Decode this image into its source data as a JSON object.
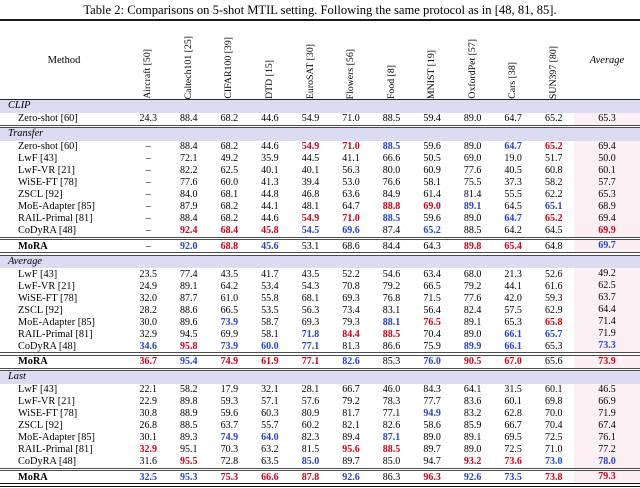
{
  "title": "Table 2: Comparisons on 5-shot MTIL setting. Following the same protocol as in [48, 81, 85].",
  "colors": {
    "best": "#d0021b",
    "second": "#2643cc",
    "section_band": "#dbdcf2",
    "average_column": "#fcf0f5"
  },
  "columns": [
    "Method",
    "Aircraft [50]",
    "Caltech101 [25]",
    "CIFAR100 [39]",
    "DTD [15]",
    "EuroSAT [30]",
    "Flowers [56]",
    "Food [8]",
    "MNIST [19]",
    "OxfordPet [57]",
    "Cars [38]",
    "SUN397 [80]",
    "Average"
  ],
  "legend_note": {
    "best_mark": "r = best (red bold)",
    "second_mark": "b = second best (blue bold)"
  },
  "chart_data": {
    "type": "table"
  },
  "sections": [
    {
      "label": "CLIP",
      "rows": [
        {
          "method": "Zero-shot [60]",
          "values": [
            "24.3",
            "88.4",
            "68.2",
            "44.6",
            "54.9",
            "71.0",
            "88.5",
            "59.4",
            "89.0",
            "64.7",
            "65.2",
            "65.3"
          ],
          "marks": [
            "",
            "",
            "",
            "",
            "",
            "",
            "",
            "",
            "",
            "",
            "",
            ""
          ]
        }
      ]
    },
    {
      "label": "Transfer",
      "rows": [
        {
          "method": "Zero-shot [60]",
          "values": [
            "–",
            "88.4",
            "68.2",
            "44.6",
            "54.9",
            "71.0",
            "88.5",
            "59.6",
            "89.0",
            "64.7",
            "65.2",
            "69.4"
          ],
          "marks": [
            "",
            "",
            "",
            "",
            "r",
            "r",
            "b",
            "",
            "",
            "b",
            "r",
            ""
          ]
        },
        {
          "method": "LwF [43]",
          "values": [
            "–",
            "72.1",
            "49.2",
            "35.9",
            "44.5",
            "41.1",
            "66.6",
            "50.5",
            "69.0",
            "19.0",
            "51.7",
            "50.0"
          ],
          "marks": [
            "",
            "",
            "",
            "",
            "",
            "",
            "",
            "",
            "",
            "",
            "",
            ""
          ]
        },
        {
          "method": "LwF-VR [21]",
          "values": [
            "–",
            "82.2",
            "62.5",
            "40.1",
            "40.1",
            "56.3",
            "80.0",
            "60.9",
            "77.6",
            "40.5",
            "60.8",
            "60.1"
          ],
          "marks": [
            "",
            "",
            "",
            "",
            "",
            "",
            "",
            "",
            "",
            "",
            "",
            ""
          ]
        },
        {
          "method": "WiSE-FT [78]",
          "values": [
            "–",
            "77.6",
            "60.0",
            "41.3",
            "39.4",
            "53.0",
            "76.6",
            "58.1",
            "75.5",
            "37.3",
            "58.2",
            "57.7"
          ],
          "marks": [
            "",
            "",
            "",
            "",
            "",
            "",
            "",
            "",
            "",
            "",
            "",
            ""
          ]
        },
        {
          "method": "ZSCL [92]",
          "values": [
            "–",
            "84.0",
            "68.1",
            "44.8",
            "46.8",
            "63.6",
            "84.9",
            "61.4",
            "81.4",
            "55.5",
            "62.2",
            "65.3"
          ],
          "marks": [
            "",
            "",
            "",
            "",
            "",
            "",
            "",
            "",
            "",
            "",
            "",
            ""
          ]
        },
        {
          "method": "MoE-Adapter [85]",
          "values": [
            "–",
            "87.9",
            "68.2",
            "44.1",
            "48.1",
            "64.7",
            "88.8",
            "69.0",
            "89.1",
            "64.5",
            "65.1",
            "68.9"
          ],
          "marks": [
            "",
            "",
            "",
            "",
            "",
            "",
            "r",
            "r",
            "b",
            "",
            "b",
            ""
          ]
        },
        {
          "method": "RAIL-Primal [81]",
          "values": [
            "–",
            "88.4",
            "68.2",
            "44.6",
            "54.9",
            "71.0",
            "88.5",
            "59.6",
            "89.0",
            "64.7",
            "65.2",
            "69.4"
          ],
          "marks": [
            "",
            "",
            "",
            "",
            "r",
            "r",
            "b",
            "",
            "",
            "b",
            "r",
            ""
          ]
        },
        {
          "method": "CoDyRA [48]",
          "values": [
            "–",
            "92.4",
            "68.4",
            "45.8",
            "54.5",
            "69.6",
            "87.4",
            "65.2",
            "88.5",
            "64.2",
            "64.5",
            "69.9"
          ],
          "marks": [
            "",
            "r",
            "r",
            "r",
            "b",
            "b",
            "",
            "b",
            "",
            "",
            "",
            "r"
          ]
        },
        {
          "method": "MoRA",
          "bold": true,
          "separated": true,
          "values": [
            "–",
            "92.0",
            "68.8",
            "45.6",
            "53.1",
            "68.6",
            "84.4",
            "64.3",
            "89.8",
            "65.4",
            "64.8",
            "69.7"
          ],
          "marks": [
            "",
            "b",
            "r",
            "b",
            "",
            "",
            "",
            "",
            "r",
            "r",
            "",
            "b"
          ]
        }
      ]
    },
    {
      "label": "Average",
      "rows": [
        {
          "method": "LwF [43]",
          "values": [
            "23.5",
            "77.4",
            "43.5",
            "41.7",
            "43.5",
            "52.2",
            "54.6",
            "63.4",
            "68.0",
            "21.3",
            "52.6",
            "49.2"
          ],
          "marks": [
            "",
            "",
            "",
            "",
            "",
            "",
            "",
            "",
            "",
            "",
            "",
            ""
          ]
        },
        {
          "method": "LwF-VR [21]",
          "values": [
            "24.9",
            "89.1",
            "64.2",
            "53.4",
            "54.3",
            "70.8",
            "79.2",
            "66.5",
            "79.2",
            "44.1",
            "61.6",
            "62.5"
          ],
          "marks": [
            "",
            "",
            "",
            "",
            "",
            "",
            "",
            "",
            "",
            "",
            "",
            ""
          ]
        },
        {
          "method": "WiSE-FT [78]",
          "values": [
            "32.0",
            "87.7",
            "61.0",
            "55.8",
            "68.1",
            "69.3",
            "76.8",
            "71.5",
            "77.6",
            "42.0",
            "59.3",
            "63.7"
          ],
          "marks": [
            "",
            "",
            "",
            "",
            "",
            "",
            "",
            "",
            "",
            "",
            "",
            ""
          ]
        },
        {
          "method": "ZSCL [92]",
          "values": [
            "28.2",
            "88.6",
            "66.5",
            "53.5",
            "56.3",
            "73.4",
            "83.1",
            "56.4",
            "82.4",
            "57.5",
            "62.9",
            "64.4"
          ],
          "marks": [
            "",
            "",
            "",
            "",
            "",
            "",
            "",
            "",
            "",
            "",
            "",
            ""
          ]
        },
        {
          "method": "MoE-Adapter [85]",
          "values": [
            "30.0",
            "89.6",
            "73.9",
            "58.7",
            "69.3",
            "79.3",
            "88.1",
            "76.5",
            "89.1",
            "65.3",
            "65.8",
            "71.4"
          ],
          "marks": [
            "",
            "",
            "b",
            "",
            "",
            "",
            "b",
            "r",
            "",
            "",
            "r",
            ""
          ]
        },
        {
          "method": "RAIL-Primal [81]",
          "values": [
            "32.9",
            "94.5",
            "69.9",
            "58.1",
            "71.8",
            "84.4",
            "88.5",
            "70.4",
            "89.0",
            "66.1",
            "65.7",
            "71.9"
          ],
          "marks": [
            "",
            "",
            "",
            "",
            "b",
            "r",
            "r",
            "",
            "",
            "b",
            "b",
            ""
          ]
        },
        {
          "method": "CoDyRA [48]",
          "values": [
            "34.6",
            "95.8",
            "73.9",
            "60.0",
            "77.1",
            "81.3",
            "86.6",
            "75.9",
            "89.9",
            "66.1",
            "65.3",
            "73.3"
          ],
          "marks": [
            "b",
            "r",
            "b",
            "b",
            "b",
            "",
            "",
            "",
            "b",
            "b",
            "",
            "b"
          ]
        },
        {
          "method": "MoRA",
          "bold": true,
          "separated": true,
          "values": [
            "36.7",
            "95.4",
            "74.9",
            "61.9",
            "77.1",
            "82.6",
            "85.3",
            "76.0",
            "90.5",
            "67.0",
            "65.6",
            "73.9"
          ],
          "marks": [
            "r",
            "b",
            "r",
            "r",
            "r",
            "b",
            "",
            "b",
            "r",
            "r",
            "",
            "r"
          ]
        }
      ]
    },
    {
      "label": "Last",
      "rows": [
        {
          "method": "LwF [43]",
          "values": [
            "22.1",
            "58.2",
            "17.9",
            "32.1",
            "28.1",
            "66.7",
            "46.0",
            "84.3",
            "64.1",
            "31.5",
            "60.1",
            "46.5"
          ],
          "marks": [
            "",
            "",
            "",
            "",
            "",
            "",
            "",
            "",
            "",
            "",
            "",
            ""
          ]
        },
        {
          "method": "LwF-VR [21]",
          "values": [
            "22.9",
            "89.8",
            "59.3",
            "57.1",
            "57.6",
            "79.2",
            "78.3",
            "77.7",
            "83.6",
            "60.1",
            "69.8",
            "66.9"
          ],
          "marks": [
            "",
            "",
            "",
            "",
            "",
            "",
            "",
            "",
            "",
            "",
            "",
            ""
          ]
        },
        {
          "method": "WiSE-FT [78]",
          "values": [
            "30.8",
            "88.9",
            "59.6",
            "60.3",
            "80.9",
            "81.7",
            "77.1",
            "94.9",
            "83.2",
            "62.8",
            "70.0",
            "71.9"
          ],
          "marks": [
            "",
            "",
            "",
            "",
            "",
            "",
            "",
            "b",
            "",
            "",
            "",
            ""
          ]
        },
        {
          "method": "ZSCL [92]",
          "values": [
            "26.8",
            "88.5",
            "63.7",
            "55.7",
            "60.2",
            "82.1",
            "82.6",
            "58.6",
            "85.9",
            "66.7",
            "70.4",
            "67.4"
          ],
          "marks": [
            "",
            "",
            "",
            "",
            "",
            "",
            "",
            "",
            "",
            "",
            "",
            ""
          ]
        },
        {
          "method": "MoE-Adapter [85]",
          "values": [
            "30.1",
            "89.3",
            "74.9",
            "64.0",
            "82.3",
            "89.4",
            "87.1",
            "89.0",
            "89.1",
            "69.5",
            "72.5",
            "76.1"
          ],
          "marks": [
            "",
            "",
            "b",
            "b",
            "",
            "",
            "b",
            "",
            "",
            "",
            "",
            ""
          ]
        },
        {
          "method": "RAIL-Primal [81]",
          "values": [
            "32.9",
            "95.1",
            "70.3",
            "63.2",
            "81.5",
            "95.6",
            "88.5",
            "89.7",
            "89.0",
            "72.5",
            "71.0",
            "77.2"
          ],
          "marks": [
            "r",
            "",
            "",
            "",
            "",
            "r",
            "r",
            "",
            "",
            "",
            "",
            ""
          ]
        },
        {
          "method": "CoDyRA [48]",
          "values": [
            "31.6",
            "95.5",
            "72.8",
            "63.5",
            "85.0",
            "89.7",
            "85.0",
            "94.7",
            "93.2",
            "73.6",
            "73.0",
            "78.0"
          ],
          "marks": [
            "",
            "r",
            "",
            "",
            "b",
            "",
            "",
            "",
            "r",
            "r",
            "b",
            "b"
          ]
        },
        {
          "method": "MoRA",
          "bold": true,
          "separated": true,
          "values": [
            "32.5",
            "95.3",
            "75.3",
            "66.6",
            "87.8",
            "92.6",
            "86.3",
            "96.3",
            "92.6",
            "73.5",
            "73.8",
            "79.3"
          ],
          "marks": [
            "b",
            "b",
            "r",
            "r",
            "r",
            "b",
            "",
            "r",
            "b",
            "b",
            "r",
            "r"
          ]
        }
      ]
    }
  ]
}
